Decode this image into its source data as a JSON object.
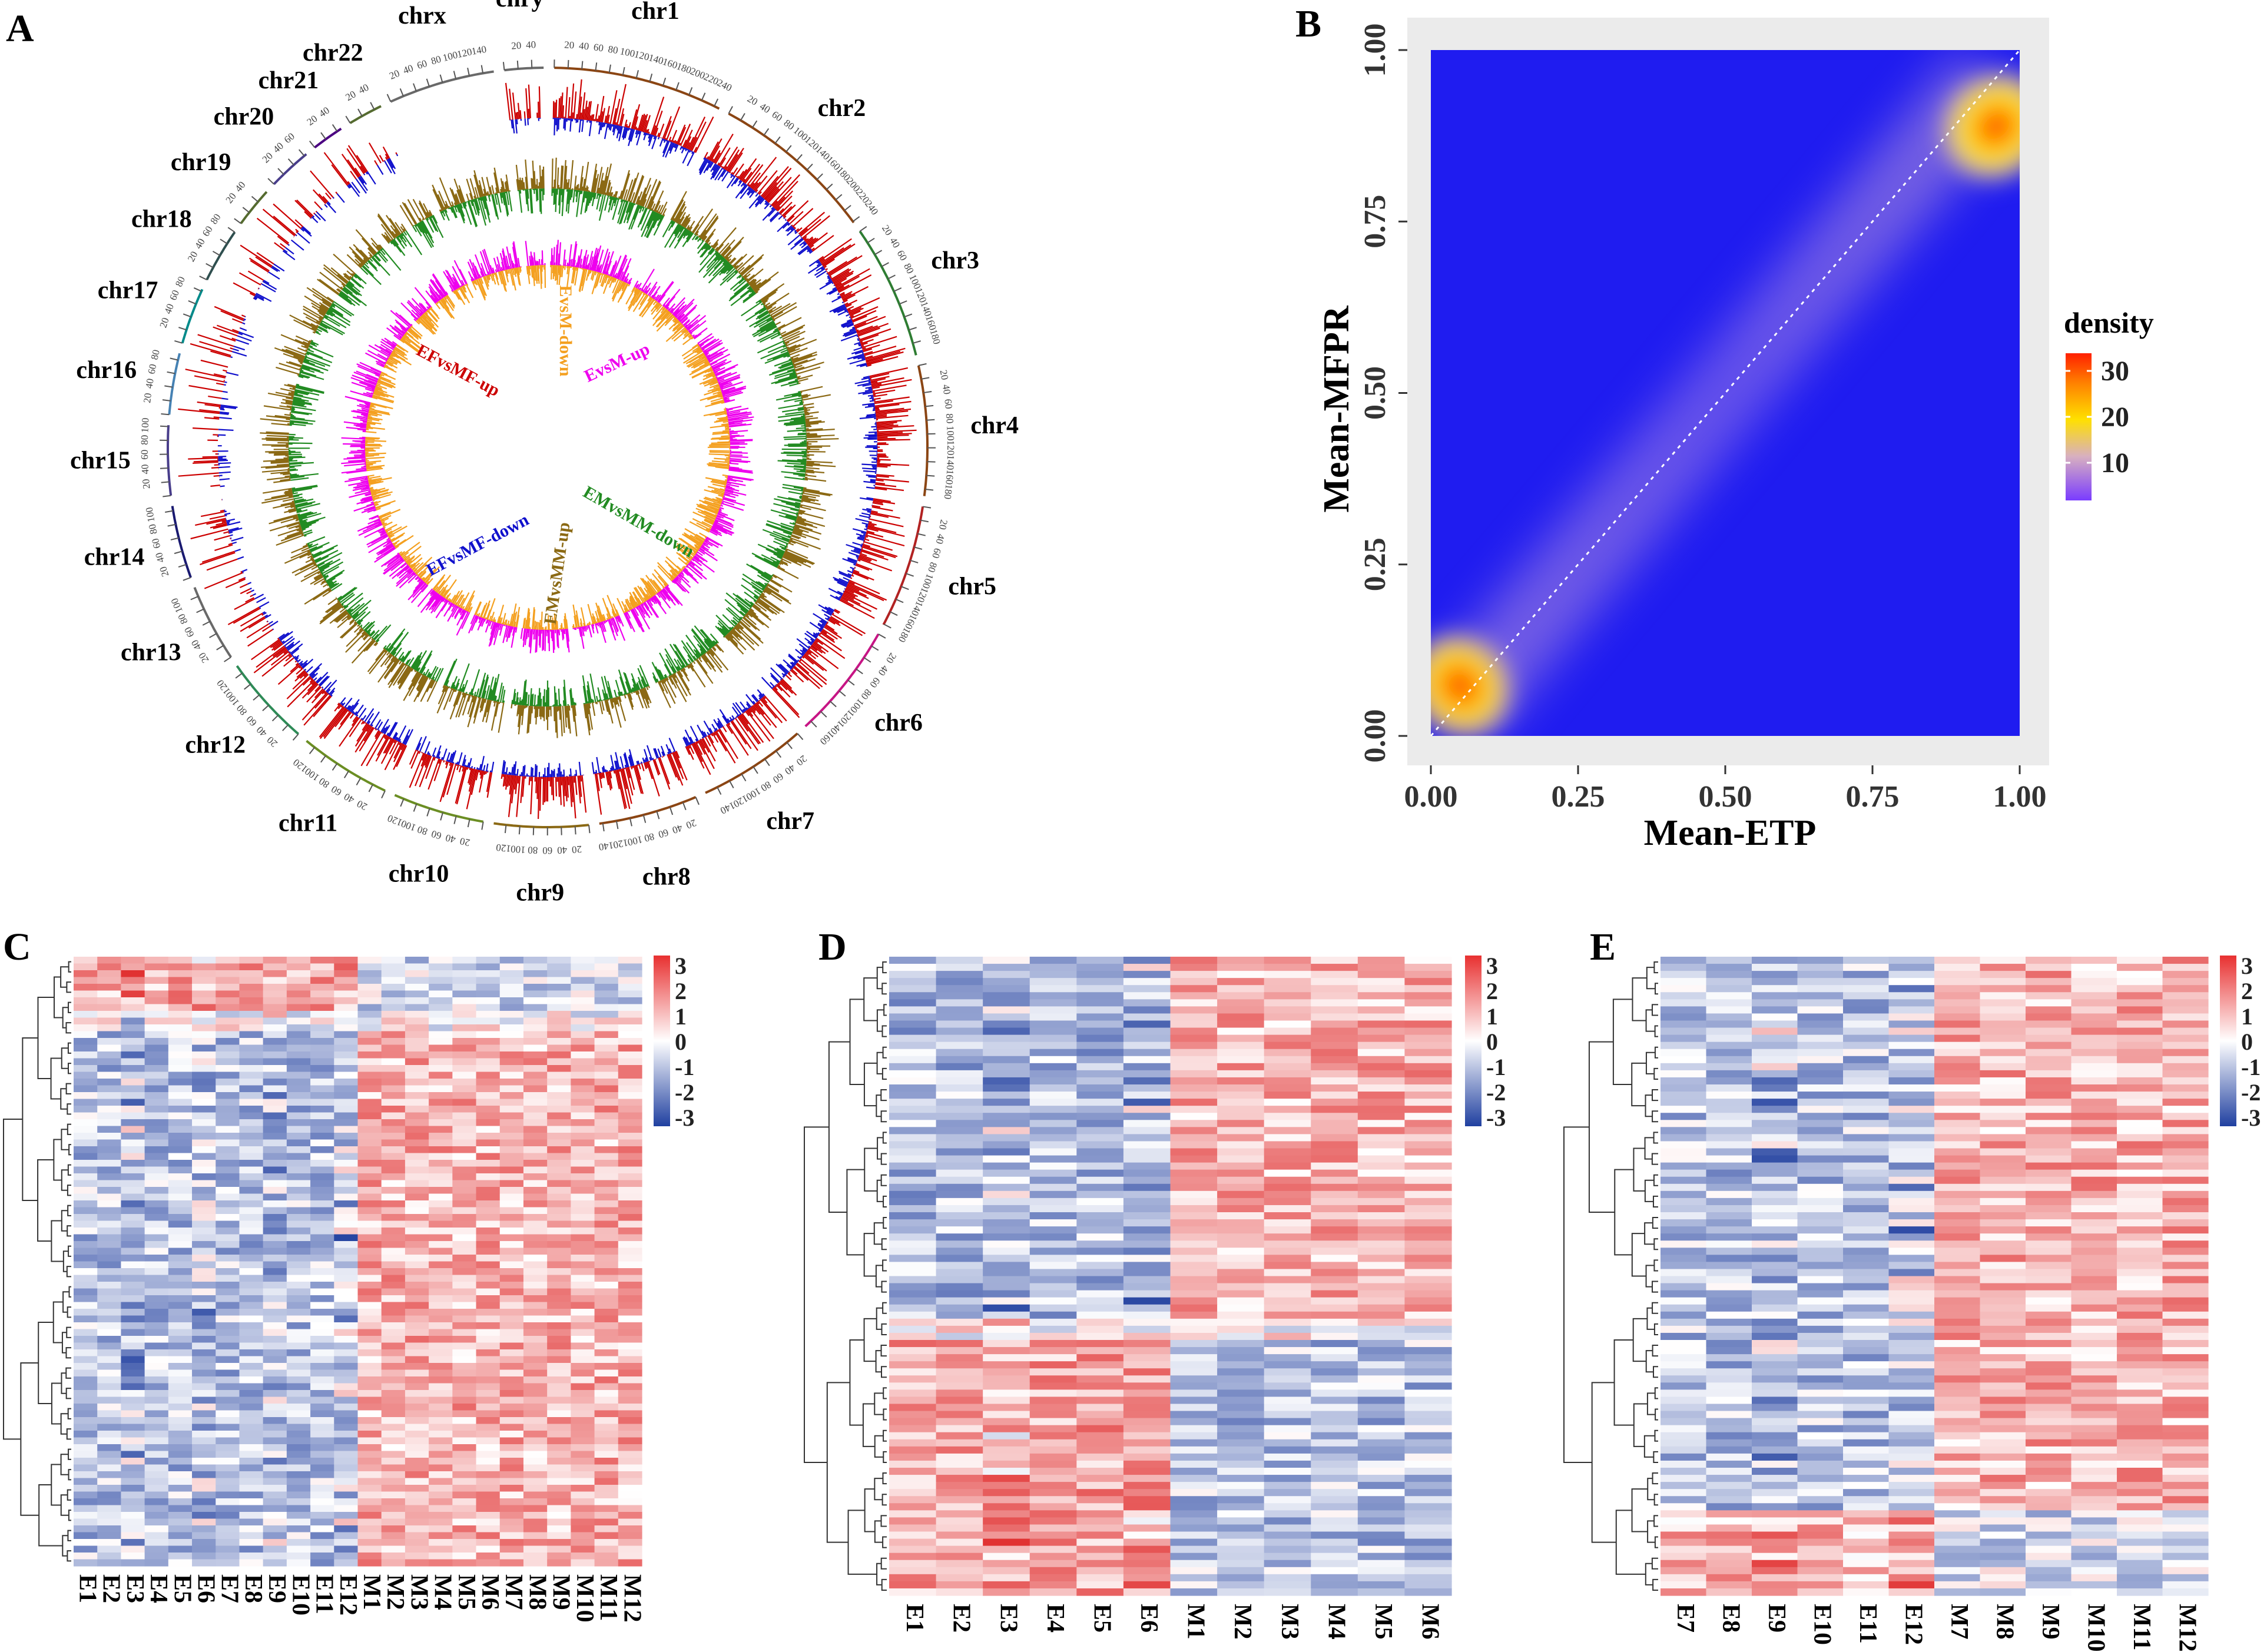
{
  "panels": {
    "A": "A",
    "B": "B",
    "C": "C",
    "D": "D",
    "E": "E"
  },
  "chart_data": [
    {
      "panel": "A",
      "type": "circos",
      "chromosomes": [
        {
          "name": "chr1",
          "length": 248,
          "color": "#8b4513"
        },
        {
          "name": "chr2",
          "length": 242,
          "color": "#8b4513"
        },
        {
          "name": "chr3",
          "length": 198,
          "color": "#2e7d32"
        },
        {
          "name": "chr4",
          "length": 190,
          "color": "#8b4513"
        },
        {
          "name": "chr5",
          "length": 181,
          "color": "#b22222"
        },
        {
          "name": "chr6",
          "length": 171,
          "color": "#c71585"
        },
        {
          "name": "chr7",
          "length": 159,
          "color": "#8b4513"
        },
        {
          "name": "chr8",
          "length": 145,
          "color": "#8b4513"
        },
        {
          "name": "chr9",
          "length": 138,
          "color": "#8b6914"
        },
        {
          "name": "chr10",
          "length": 134,
          "color": "#6b8e23"
        },
        {
          "name": "chr11",
          "length": 135,
          "color": "#6b8e23"
        },
        {
          "name": "chr12",
          "length": 133,
          "color": "#2e8b57"
        },
        {
          "name": "chr13",
          "length": 114,
          "color": "#696969"
        },
        {
          "name": "chr14",
          "length": 107,
          "color": "#191970"
        },
        {
          "name": "chr15",
          "length": 102,
          "color": "#483d8b"
        },
        {
          "name": "chr16",
          "length": 90,
          "color": "#4682b4"
        },
        {
          "name": "chr17",
          "length": 83,
          "color": "#008b8b"
        },
        {
          "name": "chr18",
          "length": 80,
          "color": "#2f4f4f"
        },
        {
          "name": "chr19",
          "length": 59,
          "color": "#556b2f"
        },
        {
          "name": "chr20",
          "length": 64,
          "color": "#483d8b"
        },
        {
          "name": "chr21",
          "length": 47,
          "color": "#4b0082"
        },
        {
          "name": "chr22",
          "length": 51,
          "color": "#556b2f"
        },
        {
          "name": "chrx",
          "length": 156,
          "color": "#696969"
        },
        {
          "name": "chry",
          "length": 57,
          "color": "#696969"
        }
      ],
      "tracks": [
        {
          "name": "EFvsMF-up",
          "color": "#cc0000"
        },
        {
          "name": "EFvsMF-down",
          "color": "#1010cc"
        },
        {
          "name": "EMvsMM-up",
          "color": "#8b6914"
        },
        {
          "name": "EMvsMM-down",
          "color": "#228b22"
        },
        {
          "name": "EvsM-up",
          "color": "#ee00ee"
        },
        {
          "name": "EvsM-down",
          "color": "#f4a020"
        }
      ]
    },
    {
      "panel": "B",
      "type": "heatmap",
      "title": "",
      "xlabel": "Mean-ETP",
      "ylabel": "Mean-MFPR",
      "xlim": [
        0,
        1
      ],
      "ylim": [
        0,
        1
      ],
      "xticks": [
        "0.00",
        "0.25",
        "0.50",
        "0.75",
        "1.00"
      ],
      "yticks": [
        "0.00",
        "0.25",
        "0.50",
        "0.75",
        "1.00"
      ],
      "density_peaks": [
        {
          "x": 0.05,
          "y": 0.07,
          "density": 30
        },
        {
          "x": 0.9,
          "y": 0.88,
          "density": 32
        }
      ],
      "legend_title": "density",
      "legend_ticks": [
        "30",
        "20",
        "10"
      ]
    },
    {
      "panel": "C",
      "type": "heatmap",
      "columns": [
        "E1",
        "E2",
        "E3",
        "E4",
        "E5",
        "E6",
        "E7",
        "E8",
        "E9",
        "E10",
        "E11",
        "E12",
        "M1",
        "M2",
        "M3",
        "M4",
        "M5",
        "M6",
        "M7",
        "M8",
        "M9",
        "M10",
        "M11",
        "M12"
      ],
      "scale_ticks": [
        "3",
        "2",
        "1",
        "0",
        "-1",
        "-2",
        "-3"
      ]
    },
    {
      "panel": "D",
      "type": "heatmap",
      "columns": [
        "E1",
        "E2",
        "E3",
        "E4",
        "E5",
        "E6",
        "M1",
        "M2",
        "M3",
        "M4",
        "M5",
        "M6"
      ],
      "scale_ticks": [
        "3",
        "2",
        "1",
        "0",
        "-1",
        "-2",
        "-3"
      ]
    },
    {
      "panel": "E",
      "type": "heatmap",
      "columns": [
        "E7",
        "E8",
        "E9",
        "E10",
        "E11",
        "E12",
        "M7",
        "M8",
        "M9",
        "M10",
        "M11",
        "M12"
      ],
      "scale_ticks": [
        "3",
        "2",
        "1",
        "0",
        "-1",
        "-2",
        "-3"
      ]
    }
  ]
}
